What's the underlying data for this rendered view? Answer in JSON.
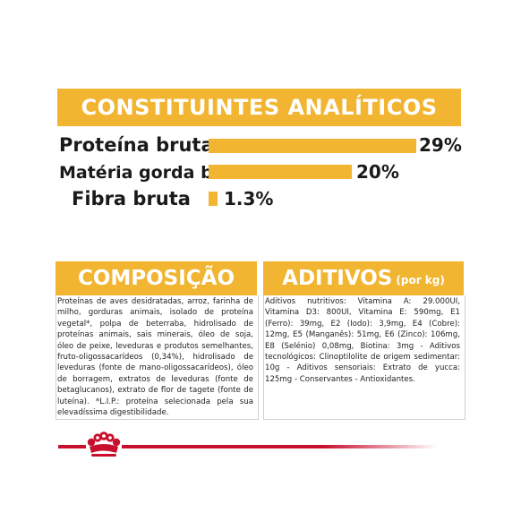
{
  "analytics": {
    "title": "CONSTITUINTES ANALÍTICOS",
    "rows": [
      {
        "label": "Proteína bruta",
        "value": "29%",
        "percent": 29
      },
      {
        "label": "Matéria gorda bruta",
        "value": "20%",
        "percent": 20
      },
      {
        "label": "Fibra bruta",
        "value": "1.3%",
        "percent": 1.3
      }
    ]
  },
  "composition": {
    "title": "COMPOSIÇÃO",
    "text": "Proteínas de aves desidratadas, arroz, farinha de milho, gorduras animais, isolado de proteína vegetal*, polpa de beterraba, hidrolisado de proteínas animais, sais minerais, óleo de soja, óleo de peixe, leveduras e produtos semelhantes, fruto-oligossacarídeos (0,34%), hidrolisado de leveduras (fonte de mano-oligossacarídeos), óleo de borragem, extratos de leveduras (fonte de betaglucanos), extrato de flor de tagete (fonte de luteína). *L.I.P.: proteína selecionada pela sua elevadíssima digestibilidade."
  },
  "additives": {
    "title": "ADITIVOS",
    "subtitle": "(por kg)",
    "text": "Aditivos nutritivos: Vitamina A: 29.000UI, Vitamina D3: 800UI, Vitamina E: 590mg, E1 (Ferro): 39mg, E2 (Iodo): 3,9mg, E4 (Cobre): 12mg, E5 (Manganês): 51mg, E6 (Zinco): 106mg, E8 (Selénio) 0,08mg, Biotina: 3mg - Aditivos tecnológicos: Clinoptilolite de origem sedimentar: 10g - Aditivos sensoriais: Extrato de yucca: 125mg - Conservantes - Antioxidantes."
  },
  "brand": {
    "logo": "royal-canin-crown-icon"
  },
  "colors": {
    "accent": "#F2B531",
    "brand_red": "#C8102E"
  }
}
